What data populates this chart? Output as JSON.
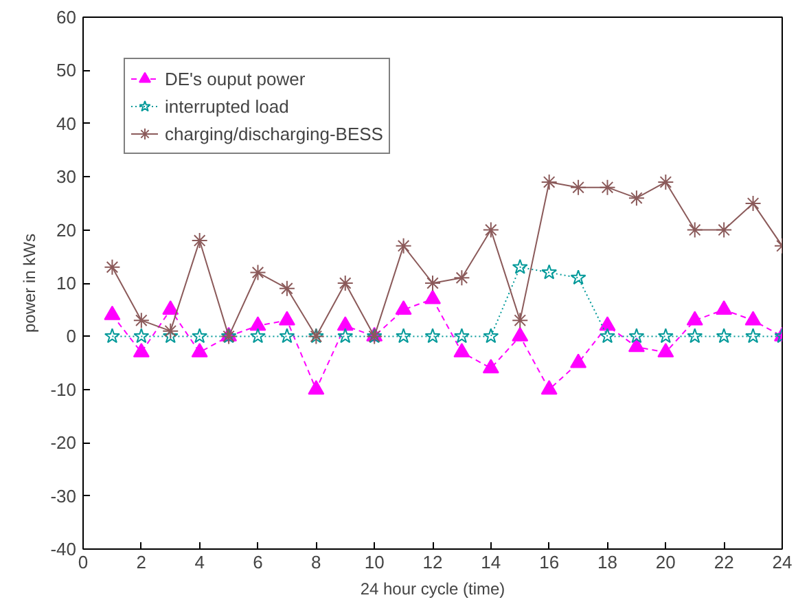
{
  "chart_data": {
    "type": "line",
    "xlabel": "24 hour cycle (time)",
    "ylabel": "power in kWs",
    "x": [
      1,
      2,
      3,
      4,
      5,
      6,
      7,
      8,
      9,
      10,
      11,
      12,
      13,
      14,
      15,
      16,
      17,
      18,
      19,
      20,
      21,
      22,
      23,
      24
    ],
    "xlim": [
      0,
      24
    ],
    "xticks": [
      0,
      2,
      4,
      6,
      8,
      10,
      12,
      14,
      16,
      18,
      20,
      22,
      24
    ],
    "ylim": [
      -40,
      60
    ],
    "yticks": [
      -40,
      -30,
      -20,
      -10,
      0,
      10,
      20,
      30,
      40,
      50,
      60
    ],
    "grid": false,
    "legend": "top left",
    "series": [
      {
        "name": "DE's ouput power",
        "color": "#ff00ff",
        "marker": "triangle",
        "line_style": "dashed",
        "values": [
          4,
          -3,
          5,
          -3,
          0,
          2,
          3,
          -10,
          2,
          0,
          5,
          7,
          -3,
          -6,
          0,
          -10,
          -5,
          2,
          -2,
          -3,
          3,
          5,
          3,
          0
        ]
      },
      {
        "name": "interrupted load",
        "color": "#009999",
        "marker": "star",
        "line_style": "dotted",
        "values": [
          0,
          0,
          0,
          0,
          0,
          0,
          0,
          0,
          0,
          0,
          0,
          0,
          0,
          0,
          13,
          12,
          11,
          0,
          0,
          0,
          0,
          0,
          0,
          0
        ]
      },
      {
        "name": "charging/discharging-BESS",
        "color": "#8b5a5a",
        "marker": "cross",
        "line_style": "solid",
        "values": [
          13,
          3,
          1,
          18,
          0,
          12,
          9,
          0,
          10,
          0,
          17,
          10,
          11,
          20,
          3,
          29,
          28,
          28,
          26,
          29,
          20,
          20,
          25,
          17
        ]
      }
    ]
  }
}
